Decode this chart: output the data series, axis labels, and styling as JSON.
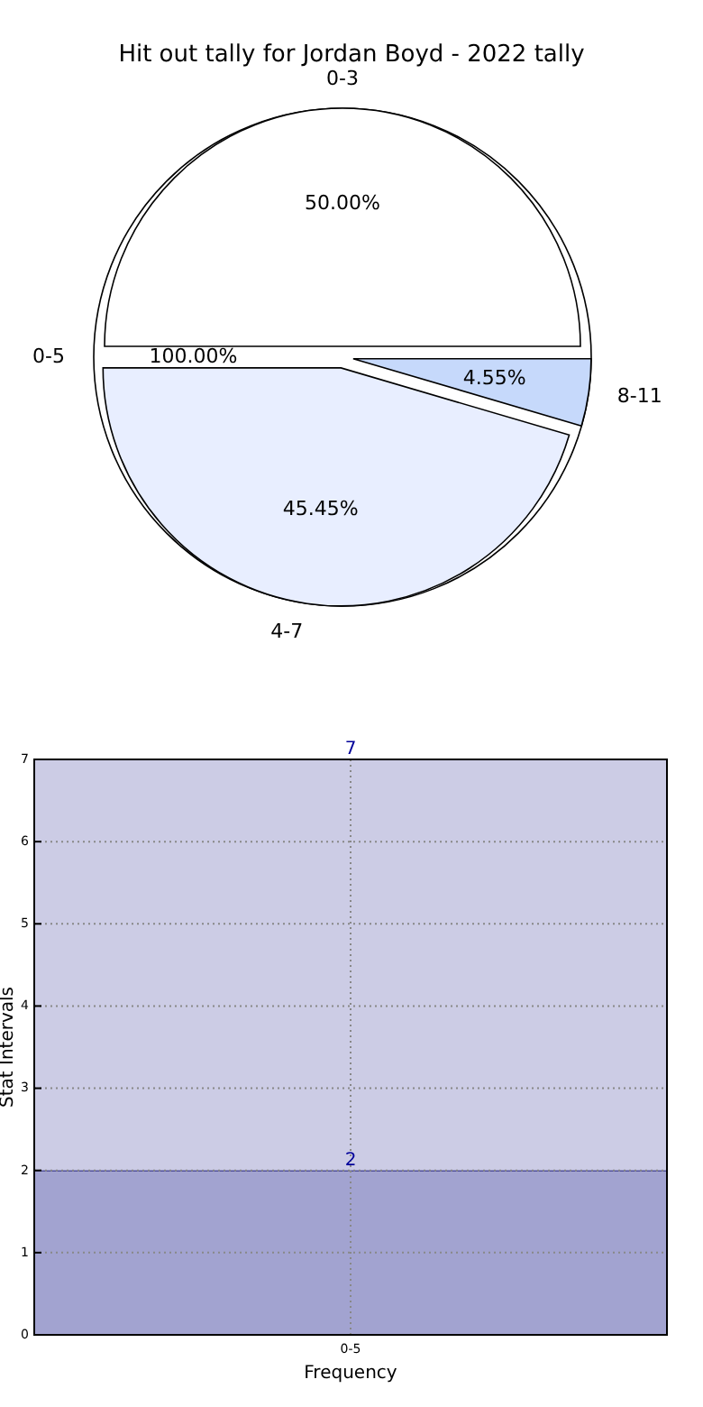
{
  "chart_data": [
    {
      "type": "pie",
      "title": "Hit out tally for Jordan Boyd - 2022 tally",
      "categories": [
        "0-5"
      ],
      "values": [
        100
      ],
      "colors": [
        "#ffffff"
      ],
      "value_labels": [
        "100.00%"
      ]
    },
    {
      "type": "pie",
      "categories": [
        "0-3",
        "4-7",
        "8-11"
      ],
      "values": [
        50,
        45.45,
        4.55
      ],
      "colors": [
        "#ffffff",
        "#e8eeff",
        "#c6d9fb"
      ],
      "value_labels": [
        "50.00%",
        "45.45%",
        "4.55%"
      ]
    },
    {
      "type": "bar",
      "categories": [
        "0-5"
      ],
      "xlabel": "Frequency",
      "ylabel": "Stat Intervals",
      "ylim": [
        0,
        7
      ],
      "yticks": [
        0,
        1,
        2,
        3,
        4,
        5,
        6,
        7
      ],
      "grid": true,
      "stacked": true,
      "totals": [
        "7"
      ],
      "series": [
        {
          "color": "#a2a3d0",
          "values": [
            2
          ],
          "value_labels": [
            "2"
          ]
        },
        {
          "color": "#cccce5",
          "values": [
            5
          ],
          "value_labels": [
            null
          ]
        }
      ]
    }
  ]
}
